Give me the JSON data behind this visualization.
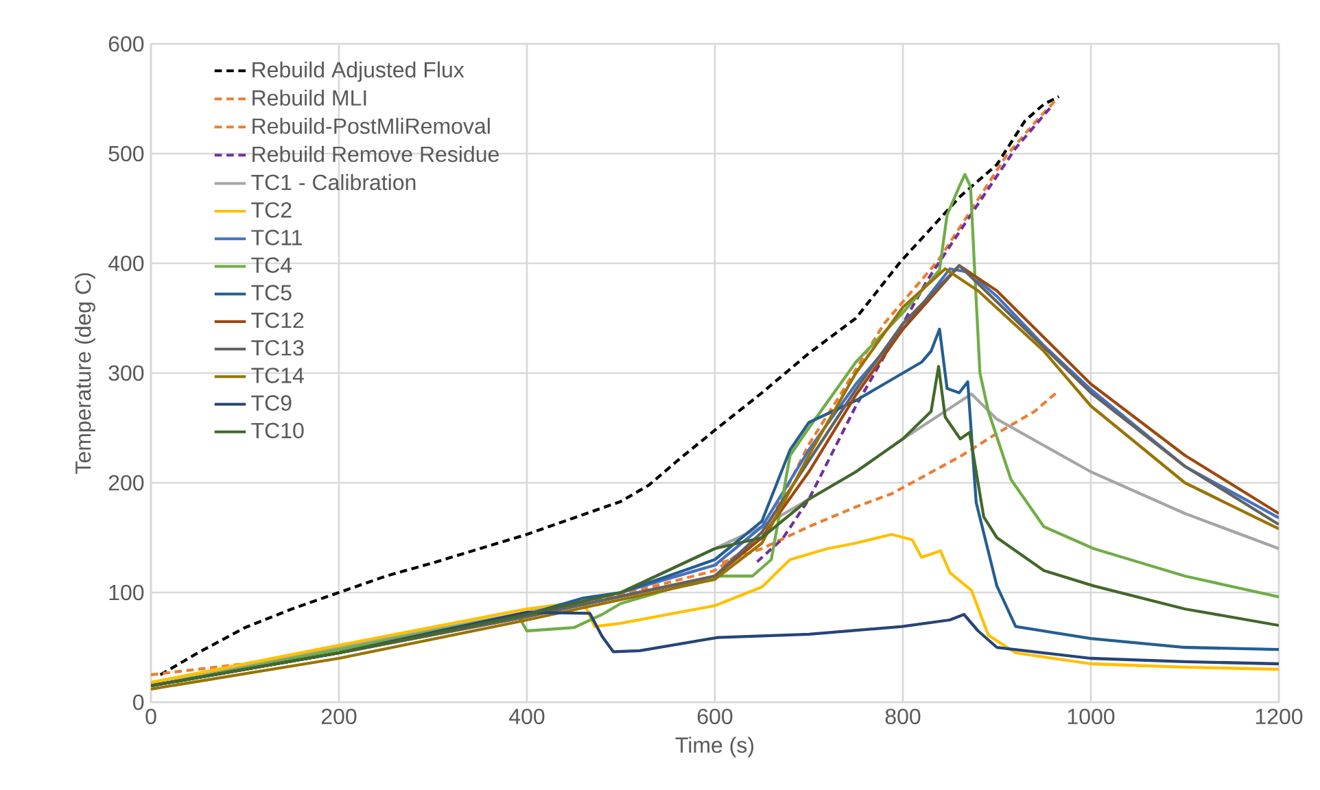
{
  "chart_data": {
    "type": "line",
    "xlabel": "Time (s)",
    "ylabel": "Temperature (deg C)",
    "xlim": [
      0,
      1200
    ],
    "xticks": [
      0,
      200,
      400,
      600,
      800,
      1000,
      1200
    ],
    "ylim": [
      0,
      600
    ],
    "yticks": [
      0,
      100,
      200,
      300,
      400,
      500,
      600
    ],
    "grid": true,
    "legend": "top left",
    "marker": "none",
    "series": [
      {
        "name": "Rebuild Adjusted Flux",
        "color": "#000000",
        "line_style": "dashed",
        "x": [
          10,
          50,
          100,
          150,
          200,
          250,
          300,
          350,
          400,
          450,
          500,
          530,
          560,
          600,
          650,
          700,
          750,
          798,
          861,
          900,
          930,
          950,
          966
        ],
        "values": [
          25,
          45,
          68,
          85,
          100,
          115,
          127,
          140,
          153,
          168,
          183,
          198,
          220,
          248,
          282,
          318,
          350,
          402,
          461,
          490,
          530,
          545,
          552
        ]
      },
      {
        "name": "Rebuild MLI",
        "color": "#ed7d31",
        "line_style": "dashed",
        "x": [
          0,
          100,
          200,
          400,
          500,
          600,
          650,
          700,
          750,
          788,
          861,
          900,
          940,
          966
        ],
        "values": [
          25,
          35,
          48,
          82,
          100,
          125,
          140,
          160,
          178,
          190,
          224,
          245,
          265,
          284
        ]
      },
      {
        "name": "Rebuild-PostMliRemoval",
        "color": "#ed7d31",
        "line_style": "dashed",
        "x": [
          0,
          200,
          400,
          500,
          600,
          650,
          700,
          734,
          780,
          837,
          870,
          910,
          940,
          963
        ],
        "values": [
          15,
          45,
          80,
          98,
          120,
          150,
          235,
          281,
          345,
          402,
          445,
          498,
          528,
          549
        ]
      },
      {
        "name": "Rebuild Remove Residue",
        "color": "#7030a0",
        "line_style": "dashed",
        "x": [
          645,
          672,
          700,
          750,
          800,
          827,
          876,
          920,
          959
        ],
        "values": [
          128,
          149,
          185,
          270,
          345,
          386,
          449,
          505,
          544
        ]
      },
      {
        "name": "TC1 - Calibration",
        "color": "#a5a5a5",
        "line_style": "solid",
        "x": [
          0,
          200,
          400,
          500,
          600,
          650,
          700,
          750,
          800,
          850,
          873,
          900,
          1000,
          1100,
          1200
        ],
        "values": [
          18,
          50,
          82,
          100,
          140,
          160,
          185,
          210,
          240,
          268,
          281,
          258,
          210,
          172,
          140
        ]
      },
      {
        "name": "TC2",
        "color": "#ffc000",
        "line_style": "solid",
        "x": [
          0,
          200,
          400,
          460,
          472,
          500,
          600,
          650,
          680,
          720,
          750,
          788,
          810,
          820,
          840,
          850,
          873,
          891,
          920,
          1000,
          1100,
          1200
        ],
        "values": [
          18,
          52,
          85,
          92,
          69,
          72,
          88,
          105,
          130,
          140,
          145,
          153,
          148,
          132,
          138,
          118,
          102,
          61,
          45,
          35,
          32,
          30
        ]
      },
      {
        "name": "TC11",
        "color": "#4472c4",
        "line_style": "solid",
        "x": [
          0,
          200,
          400,
          500,
          600,
          650,
          700,
          750,
          800,
          850,
          870,
          900,
          950,
          1000,
          1100,
          1200
        ],
        "values": [
          15,
          45,
          80,
          100,
          125,
          160,
          230,
          290,
          340,
          395,
          392,
          370,
          325,
          285,
          215,
          168
        ]
      },
      {
        "name": "TC4",
        "color": "#70ad47",
        "line_style": "solid",
        "x": [
          0,
          200,
          390,
          400,
          450,
          480,
          500,
          600,
          640,
          660,
          680,
          700,
          750,
          800,
          839,
          847,
          860,
          866,
          872,
          876,
          882,
          891,
          915,
          950,
          1003,
          1100,
          1200
        ],
        "values": [
          15,
          48,
          80,
          65,
          68,
          80,
          90,
          115,
          115,
          130,
          225,
          250,
          310,
          355,
          394,
          444,
          470,
          481,
          470,
          400,
          300,
          265,
          203,
          160,
          140,
          115,
          96
        ]
      },
      {
        "name": "TC5",
        "color": "#255e91",
        "line_style": "solid",
        "x": [
          0,
          200,
          400,
          460,
          500,
          600,
          650,
          680,
          700,
          750,
          800,
          820,
          830,
          839,
          847,
          860,
          869,
          878,
          900,
          920,
          1000,
          1100,
          1200
        ],
        "values": [
          15,
          45,
          80,
          95,
          100,
          130,
          165,
          230,
          255,
          275,
          300,
          310,
          320,
          340,
          286,
          282,
          292,
          182,
          106,
          69,
          58,
          50,
          48
        ]
      },
      {
        "name": "TC12",
        "color": "#9e480e",
        "line_style": "solid",
        "x": [
          0,
          200,
          400,
          600,
          650,
          700,
          750,
          800,
          860,
          900,
          1000,
          1100,
          1200
        ],
        "values": [
          15,
          45,
          78,
          115,
          150,
          210,
          280,
          340,
          398,
          375,
          290,
          225,
          172
        ]
      },
      {
        "name": "TC13",
        "color": "#636363",
        "line_style": "solid",
        "x": [
          0,
          200,
          400,
          600,
          650,
          700,
          750,
          800,
          860,
          900,
          1000,
          1100,
          1200
        ],
        "values": [
          15,
          45,
          78,
          115,
          155,
          220,
          285,
          345,
          398,
          365,
          282,
          215,
          162
        ]
      },
      {
        "name": "TC14",
        "color": "#997300",
        "line_style": "solid",
        "x": [
          0,
          200,
          400,
          600,
          650,
          700,
          750,
          800,
          845,
          880,
          950,
          1000,
          1100,
          1200
        ],
        "values": [
          12,
          40,
          75,
          112,
          145,
          225,
          300,
          360,
          395,
          375,
          320,
          270,
          200,
          158
        ]
      },
      {
        "name": "TC9",
        "color": "#264478",
        "line_style": "solid",
        "x": [
          0,
          200,
          400,
          467,
          480,
          492,
          520,
          603,
          700,
          799,
          850,
          865,
          880,
          900,
          1000,
          1100,
          1200
        ],
        "values": [
          15,
          45,
          82,
          81,
          60,
          46,
          47,
          59,
          62,
          69,
          75,
          80,
          65,
          50,
          40,
          37,
          35
        ]
      },
      {
        "name": "TC10",
        "color": "#43682b",
        "line_style": "solid",
        "x": [
          0,
          200,
          400,
          500,
          550,
          600,
          650,
          700,
          750,
          800,
          830,
          838,
          845,
          861,
          871,
          886,
          900,
          950,
          1003,
          1100,
          1200
        ],
        "values": [
          15,
          45,
          80,
          100,
          120,
          140,
          150,
          185,
          210,
          240,
          265,
          306,
          260,
          240,
          246,
          169,
          150,
          120,
          106,
          85,
          70
        ]
      }
    ]
  }
}
